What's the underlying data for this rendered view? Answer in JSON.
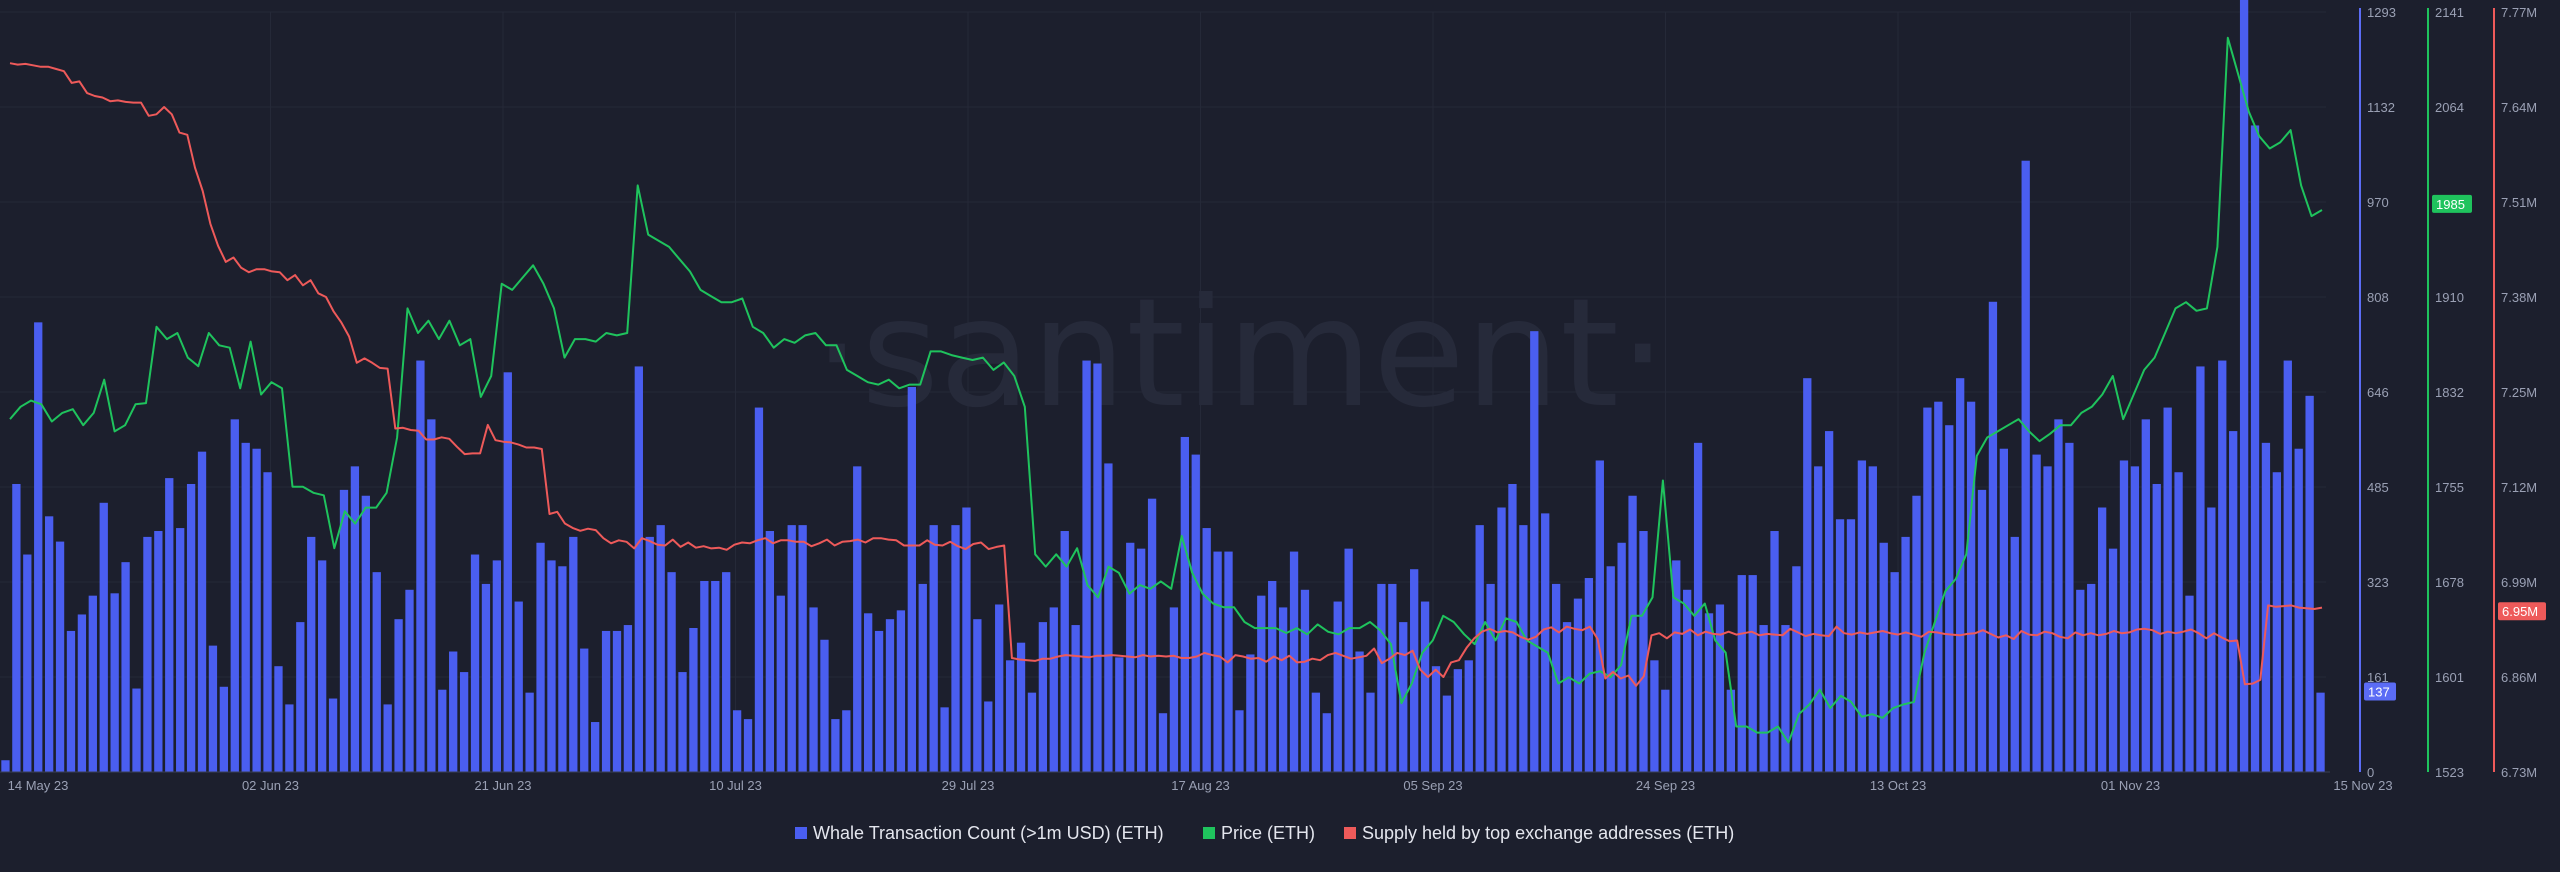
{
  "watermark": "·santiment·",
  "chart_data": {
    "type": "bar",
    "x_axis": {
      "tick_labels": [
        "14 May 23",
        "02 Jun 23",
        "21 Jun 23",
        "10 Jul 23",
        "29 Jul 23",
        "17 Aug 23",
        "05 Sep 23",
        "24 Sep 23",
        "13 Oct 23",
        "01 Nov 23",
        "15 Nov 23"
      ]
    },
    "y_axes": [
      {
        "id": "count",
        "color": "#5b6cf5",
        "range": [
          0,
          1293
        ],
        "ticks": [
          "1293",
          "1132",
          "970",
          "808",
          "646",
          "485",
          "323",
          "161",
          "0"
        ]
      },
      {
        "id": "price",
        "color": "#1fc35d",
        "range": [
          1523,
          2141
        ],
        "ticks": [
          "2141",
          "2064",
          "1985",
          "1910",
          "1832",
          "1755",
          "1678",
          "1601",
          "1523"
        ]
      },
      {
        "id": "supply",
        "color": "#ee5a5a",
        "range": [
          6.73,
          7.77
        ],
        "ticks": [
          "7.77M",
          "7.64M",
          "7.51M",
          "7.38M",
          "7.25M",
          "7.12M",
          "6.99M",
          "6.86M",
          "6.73M"
        ]
      }
    ],
    "current_values": {
      "count": "137",
      "price": "1985",
      "supply": "6.95M"
    },
    "series": [
      {
        "name": "Whale Transaction Count (>1m USD) (ETH)",
        "type": "bar",
        "axis": "count",
        "color": "#4a5ef0",
        "values": [
          20,
          490,
          370,
          765,
          435,
          392,
          240,
          268,
          300,
          458,
          304,
          357,
          142,
          400,
          410,
          500,
          415,
          490,
          545,
          215,
          145,
          600,
          560,
          550,
          510,
          180,
          115,
          255,
          400,
          360,
          125,
          480,
          520,
          470,
          340,
          115,
          260,
          310,
          700,
          600,
          140,
          205,
          170,
          370,
          320,
          360,
          680,
          290,
          135,
          390,
          360,
          350,
          400,
          210,
          85,
          240,
          240,
          250,
          690,
          400,
          420,
          340,
          170,
          245,
          325,
          325,
          340,
          105,
          90,
          620,
          410,
          300,
          420,
          420,
          280,
          225,
          90,
          105,
          520,
          270,
          240,
          260,
          275,
          655,
          320,
          420,
          110,
          420,
          450,
          260,
          120,
          285,
          190,
          220,
          135,
          255,
          280,
          410,
          250,
          700,
          695,
          525,
          195,
          390,
          380,
          465,
          100,
          280,
          570,
          540,
          415,
          375,
          375,
          105,
          200,
          300,
          325,
          280,
          375,
          310,
          135,
          100,
          290,
          380,
          205,
          135,
          320,
          320,
          255,
          345,
          290,
          180,
          130,
          175,
          190,
          420,
          320,
          450,
          490,
          420,
          750,
          440,
          320,
          255,
          295,
          330,
          530,
          350,
          390,
          470,
          410,
          190,
          140,
          360,
          310,
          560,
          270,
          285,
          140,
          335,
          335,
          250,
          410,
          250,
          350,
          670,
          520,
          580,
          430,
          430,
          530,
          520,
          390,
          340,
          400,
          470,
          620,
          630,
          590,
          670,
          630,
          480,
          800,
          550,
          400,
          1040,
          540,
          520,
          600,
          560,
          310,
          320,
          450,
          380,
          530,
          520,
          600,
          490,
          620,
          510,
          300,
          690,
          450,
          700,
          580,
          1470,
          1100,
          560,
          510,
          700,
          550,
          640,
          135
        ]
      },
      {
        "name": "Price (ETH)",
        "type": "line",
        "axis": "price",
        "color": "#1fc35d",
        "values": [
          1810,
          1820,
          1825,
          1822,
          1808,
          1815,
          1818,
          1805,
          1815,
          1842,
          1800,
          1805,
          1822,
          1823,
          1885,
          1875,
          1880,
          1860,
          1853,
          1880,
          1870,
          1868,
          1835,
          1873,
          1830,
          1840,
          1835,
          1755,
          1755,
          1750,
          1748,
          1705,
          1735,
          1725,
          1738,
          1738,
          1750,
          1795,
          1900,
          1880,
          1890,
          1875,
          1890,
          1870,
          1875,
          1828,
          1845,
          1920,
          1915,
          1925,
          1935,
          1920,
          1900,
          1860,
          1875,
          1875,
          1873,
          1880,
          1878,
          1880,
          2000,
          1960,
          1955,
          1950,
          1940,
          1930,
          1915,
          1910,
          1905,
          1905,
          1908,
          1885,
          1880,
          1868,
          1875,
          1872,
          1878,
          1880,
          1870,
          1870,
          1850,
          1845,
          1840,
          1838,
          1842,
          1835,
          1838,
          1838,
          1865,
          1865,
          1862,
          1860,
          1858,
          1860,
          1850,
          1856,
          1845,
          1820,
          1700,
          1690,
          1700,
          1690,
          1705,
          1675,
          1665,
          1690,
          1685,
          1668,
          1675,
          1672,
          1678,
          1672,
          1715,
          1685,
          1668,
          1660,
          1657,
          1657,
          1645,
          1640,
          1640,
          1640,
          1636,
          1640,
          1635,
          1643,
          1637,
          1635,
          1640,
          1640,
          1645,
          1638,
          1627,
          1579,
          1595,
          1620,
          1630,
          1650,
          1645,
          1635,
          1627,
          1645,
          1630,
          1648,
          1645,
          1630,
          1625,
          1620,
          1595,
          1600,
          1595,
          1603,
          1605,
          1600,
          1610,
          1650,
          1650,
          1665,
          1760,
          1665,
          1660,
          1650,
          1660,
          1630,
          1620,
          1560,
          1560,
          1555,
          1555,
          1560,
          1547,
          1570,
          1578,
          1590,
          1575,
          1585,
          1580,
          1568,
          1570,
          1567,
          1575,
          1578,
          1580,
          1620,
          1645,
          1670,
          1680,
          1700,
          1780,
          1795,
          1800,
          1805,
          1810,
          1800,
          1792,
          1798,
          1805,
          1805,
          1815,
          1820,
          1830,
          1845,
          1810,
          1830,
          1850,
          1860,
          1880,
          1900,
          1905,
          1898,
          1900,
          1950,
          2120,
          2090,
          2060,
          2040,
          2030,
          2035,
          2045,
          2000,
          1975,
          1980
        ]
      },
      {
        "name": "Supply held by top exchange addresses (ETH)",
        "type": "line",
        "axis": "supply",
        "color": "#ee5a5a",
        "values": [
          7.7,
          7.698,
          7.699,
          7.697,
          7.695,
          7.695,
          7.692,
          7.689,
          7.673,
          7.675,
          7.659,
          7.655,
          7.653,
          7.648,
          7.649,
          7.647,
          7.646,
          7.646,
          7.628,
          7.63,
          7.64,
          7.63,
          7.605,
          7.602,
          7.557,
          7.525,
          7.48,
          7.45,
          7.428,
          7.434,
          7.42,
          7.414,
          7.418,
          7.418,
          7.415,
          7.414,
          7.403,
          7.41,
          7.396,
          7.403,
          7.385,
          7.38,
          7.36,
          7.345,
          7.326,
          7.29,
          7.296,
          7.29,
          7.283,
          7.282,
          7.2,
          7.201,
          7.198,
          7.197,
          7.185,
          7.185,
          7.188,
          7.186,
          7.175,
          7.165,
          7.166,
          7.166,
          7.205,
          7.184,
          7.182,
          7.181,
          7.178,
          7.174,
          7.174,
          7.172,
          7.083,
          7.086,
          7.07,
          7.064,
          7.06,
          7.063,
          7.061,
          7.05,
          7.043,
          7.047,
          7.045,
          7.036,
          7.05,
          7.046,
          7.041,
          7.04,
          7.048,
          7.038,
          7.044,
          7.037,
          7.039,
          7.036,
          7.037,
          7.034,
          7.041,
          7.044,
          7.043,
          7.047,
          7.05,
          7.043,
          7.047,
          7.047,
          7.045,
          7.045,
          7.039,
          7.043,
          7.048,
          7.04,
          7.045,
          7.046,
          7.048,
          7.044,
          7.05,
          7.05,
          7.048,
          7.047,
          7.04,
          7.04,
          7.04,
          7.047,
          7.041,
          7.04,
          7.045,
          7.039,
          7.035,
          7.042,
          7.044,
          7.035,
          7.038,
          7.04,
          6.886,
          6.884,
          6.883,
          6.882,
          6.885,
          6.885,
          6.888,
          6.89,
          6.889,
          6.888,
          6.887,
          6.889,
          6.889,
          6.89,
          6.889,
          6.888,
          6.887,
          6.89,
          6.888,
          6.889,
          6.888,
          6.889,
          6.886,
          6.886,
          6.888,
          6.893,
          6.89,
          6.888,
          6.88,
          6.89,
          6.888,
          6.885,
          6.886,
          6.881,
          6.888,
          6.883,
          6.889,
          6.88,
          6.881,
          6.885,
          6.883,
          6.89,
          6.893,
          6.889,
          6.885,
          6.887,
          6.889,
          6.899,
          6.879,
          6.885,
          6.893,
          6.89,
          6.896,
          6.87,
          6.86,
          6.87,
          6.86,
          6.88,
          6.883,
          6.9,
          6.913,
          6.922,
          6.926,
          6.921,
          6.923,
          6.921,
          6.915,
          6.911,
          6.915,
          6.925,
          6.928,
          6.921,
          6.929,
          6.926,
          6.924,
          6.929,
          6.912,
          6.858,
          6.867,
          6.858,
          6.862,
          6.848,
          6.861,
          6.917,
          6.92,
          6.913,
          6.921,
          6.919,
          6.925,
          6.917,
          6.922,
          6.919,
          6.918,
          6.922,
          6.918,
          6.92,
          6.922,
          6.917,
          6.919,
          6.918,
          6.917,
          6.926,
          6.921,
          6.916,
          6.919,
          6.917,
          6.916,
          6.929,
          6.92,
          6.918,
          6.921,
          6.919,
          6.921,
          6.923,
          6.92,
          6.918,
          6.921,
          6.918,
          6.915,
          6.922,
          6.921,
          6.919,
          6.918,
          6.917,
          6.919,
          6.92,
          6.924,
          6.919,
          6.914,
          6.917,
          6.912,
          6.923,
          6.918,
          6.917,
          6.922,
          6.92,
          6.915,
          6.913,
          6.921,
          6.917,
          6.92,
          6.917,
          6.919,
          6.923,
          6.92,
          6.921,
          6.925,
          6.926,
          6.924,
          6.919,
          6.922,
          6.92,
          6.922,
          6.925,
          6.92,
          6.913,
          6.92,
          6.914,
          6.909,
          6.91,
          6.85,
          6.851,
          6.856,
          6.958,
          6.956,
          6.957,
          6.958,
          6.955,
          6.954,
          6.953,
          6.955
        ]
      }
    ],
    "legend": {
      "placement": "bottom-center"
    },
    "grid": true
  }
}
